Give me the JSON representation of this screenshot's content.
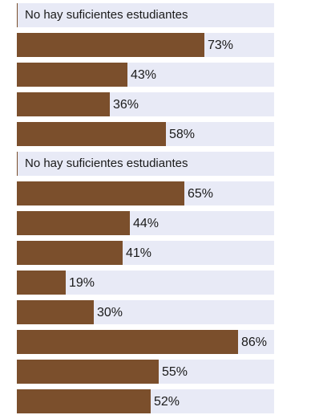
{
  "chart_data": {
    "type": "bar",
    "orientation": "horizontal",
    "xlim": [
      0,
      100
    ],
    "value_suffix": "%",
    "groups": [
      {
        "note": "No hay suficientes estudiantes",
        "values": [
          73,
          43,
          36,
          58
        ]
      },
      {
        "note": "No hay suficientes estudiantes",
        "values": [
          65,
          44,
          41,
          19,
          30,
          86,
          55,
          52
        ]
      }
    ],
    "colors": {
      "bar": "#7b4f2c",
      "track": "#e8eaf6"
    }
  }
}
